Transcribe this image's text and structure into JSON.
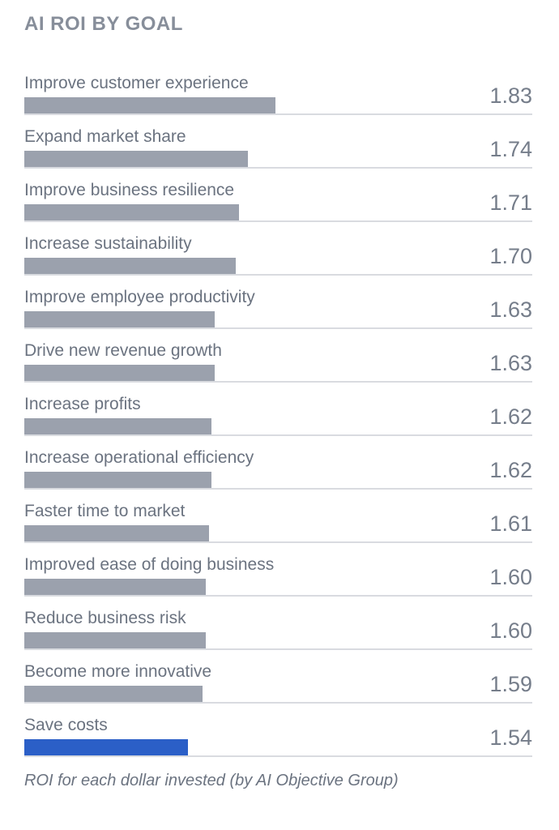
{
  "title": "AI ROI BY GOAL",
  "footer": "ROI for each dollar invested (by AI Objective Group)",
  "colors": {
    "title": "#878E9A",
    "label": "#6B7380",
    "value": "#757D8A",
    "bar_default": "#9BA1AD",
    "bar_highlight": "#2B5FC7",
    "track_line": "#D9DBE0",
    "background": "#FFFFFF"
  },
  "chart_data": {
    "type": "bar",
    "orientation": "horizontal",
    "title": "AI ROI BY GOAL",
    "caption": "ROI for each dollar invested (by AI Objective Group)",
    "categories": [
      "Improve customer experience",
      "Expand market share",
      "Improve business resilience",
      "Increase sustainability",
      "Improve employee productivity",
      "Drive new revenue growth",
      "Increase profits",
      "Increase operational efficiency",
      "Faster time to market",
      "Improved ease of doing business",
      "Reduce business risk",
      "Become more innovative",
      "Save costs"
    ],
    "values": [
      1.83,
      1.74,
      1.71,
      1.7,
      1.63,
      1.63,
      1.62,
      1.62,
      1.61,
      1.6,
      1.6,
      1.59,
      1.54
    ],
    "value_format": "0.00",
    "highlight_index": 12,
    "highlighted_category": "Save costs",
    "xlim": [
      1.0,
      2.68
    ],
    "grid": false,
    "legend": false,
    "value_labels_position": "right"
  }
}
